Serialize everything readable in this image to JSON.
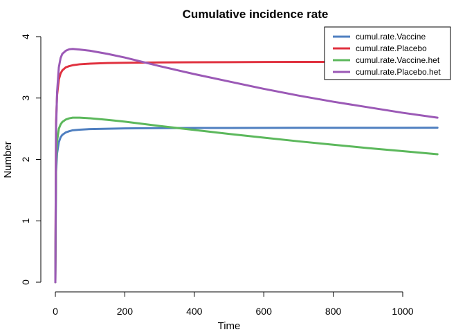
{
  "chart_data": {
    "type": "line",
    "title": "Cumulative incidence rate",
    "xlabel": "Time",
    "ylabel": "Number",
    "xlim": [
      0,
      1100
    ],
    "ylim": [
      0,
      4
    ],
    "x_ticks": [
      0,
      200,
      400,
      600,
      800,
      1000
    ],
    "y_ticks": [
      0,
      1,
      2,
      3,
      4
    ],
    "grid": false,
    "legend_position": "top-right",
    "series": [
      {
        "name": "cumul.rate.Vaccine",
        "color": "#4f7fc0",
        "x": [
          0,
          2,
          5,
          10,
          15,
          20,
          30,
          40,
          50,
          70,
          100,
          150,
          200,
          300,
          400,
          500,
          600,
          700,
          800,
          900,
          1000,
          1100
        ],
        "y": [
          0,
          1.8,
          2.1,
          2.28,
          2.36,
          2.4,
          2.44,
          2.46,
          2.475,
          2.485,
          2.495,
          2.5,
          2.505,
          2.51,
          2.512,
          2.513,
          2.514,
          2.515,
          2.515,
          2.516,
          2.516,
          2.517
        ]
      },
      {
        "name": "cumul.rate.Placebo",
        "color": "#e0313f",
        "x": [
          0,
          2,
          5,
          10,
          15,
          20,
          30,
          40,
          50,
          70,
          100,
          150,
          200,
          300,
          400,
          500,
          600,
          700,
          800,
          900,
          1000,
          1100
        ],
        "y": [
          0,
          2.6,
          3.05,
          3.3,
          3.4,
          3.45,
          3.5,
          3.52,
          3.535,
          3.55,
          3.56,
          3.57,
          3.575,
          3.58,
          3.583,
          3.585,
          3.587,
          3.588,
          3.589,
          3.59,
          3.59,
          3.59
        ]
      },
      {
        "name": "cumul.rate.Vaccine.het",
        "color": "#5cb85c",
        "x": [
          0,
          2,
          5,
          10,
          15,
          20,
          30,
          40,
          50,
          70,
          100,
          150,
          200,
          300,
          400,
          500,
          600,
          700,
          800,
          900,
          1000,
          1100
        ],
        "y": [
          0,
          1.9,
          2.3,
          2.5,
          2.57,
          2.61,
          2.65,
          2.67,
          2.68,
          2.68,
          2.67,
          2.645,
          2.615,
          2.545,
          2.48,
          2.415,
          2.355,
          2.295,
          2.24,
          2.185,
          2.135,
          2.085
        ]
      },
      {
        "name": "cumul.rate.Placebo.het",
        "color": "#9b59b6",
        "x": [
          0,
          2,
          5,
          10,
          15,
          20,
          30,
          40,
          50,
          70,
          100,
          150,
          200,
          300,
          400,
          500,
          600,
          700,
          800,
          900,
          1000,
          1100
        ],
        "y": [
          0,
          2.5,
          3.1,
          3.5,
          3.65,
          3.72,
          3.77,
          3.795,
          3.8,
          3.79,
          3.77,
          3.72,
          3.66,
          3.52,
          3.39,
          3.27,
          3.15,
          3.04,
          2.94,
          2.85,
          2.76,
          2.68
        ]
      }
    ]
  }
}
